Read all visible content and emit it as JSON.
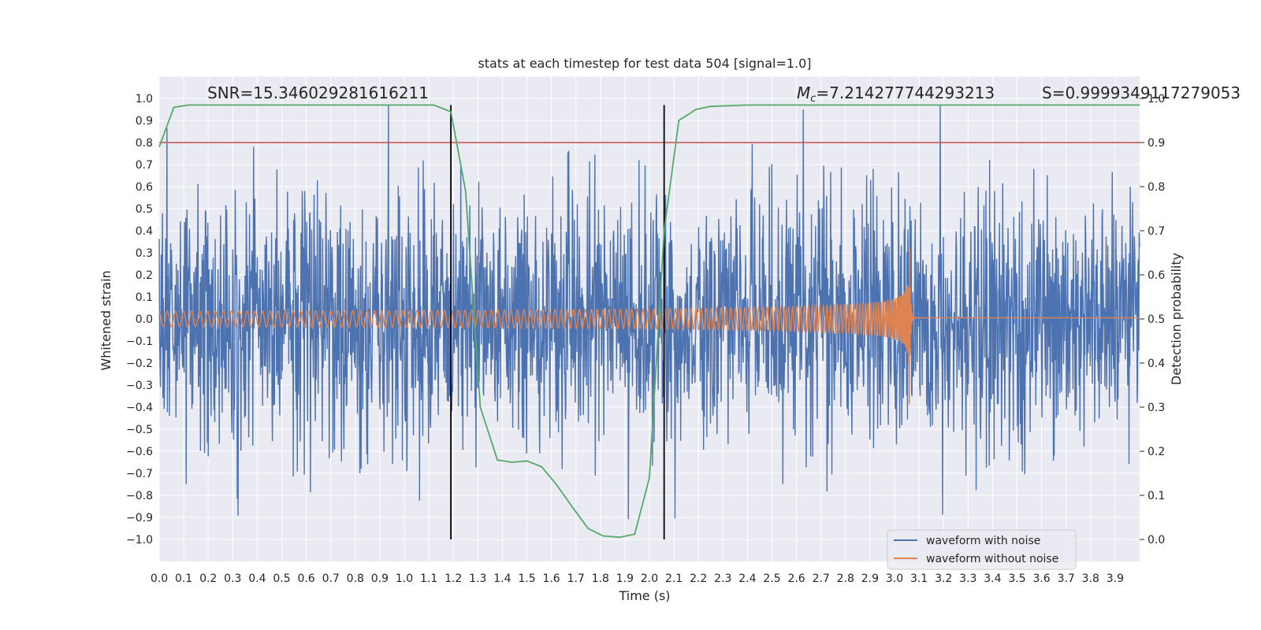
{
  "chart_data": {
    "type": "line",
    "title": "stats at each timestep for test data 504 [signal=1.0]",
    "xlabel": "Time (s)",
    "ylabel": "Whitened strain",
    "y2label": "Detection probability",
    "xlim": [
      0.0,
      4.0
    ],
    "ylim": [
      -1.1,
      1.1
    ],
    "y2lim": [
      -0.05,
      1.05
    ],
    "xticks": [
      "0.0",
      "0.1",
      "0.2",
      "0.3",
      "0.4",
      "0.5",
      "0.6",
      "0.7",
      "0.8",
      "0.9",
      "1.0",
      "1.1",
      "1.2",
      "1.3",
      "1.4",
      "1.5",
      "1.6",
      "1.7",
      "1.8",
      "1.9",
      "2.0",
      "2.1",
      "2.2",
      "2.3",
      "2.4",
      "2.5",
      "2.6",
      "2.7",
      "2.8",
      "2.9",
      "3.0",
      "3.1",
      "3.2",
      "3.3",
      "3.4",
      "3.5",
      "3.6",
      "3.7",
      "3.8",
      "3.9"
    ],
    "yticks": [
      "1.0",
      "0.9",
      "0.8",
      "0.7",
      "0.6",
      "0.5",
      "0.4",
      "0.3",
      "0.2",
      "0.1",
      "0.0",
      "−0.1",
      "−0.2",
      "−0.3",
      "−0.4",
      "−0.5",
      "−0.6",
      "−0.7",
      "−0.8",
      "−0.9",
      "−1.0"
    ],
    "y2ticks": [
      "1.0",
      "0.9",
      "0.8",
      "0.7",
      "0.6",
      "0.5",
      "0.4",
      "0.3",
      "0.2",
      "0.1",
      "0.0"
    ],
    "annotations": {
      "snr": "SNR=15.346029281616211",
      "mc_symbol": "M",
      "mc_sub": "c",
      "mc_value": "=7.214277744293213",
      "s": "S=0.9999349117279053"
    },
    "vertical_lines": [
      1.19,
      2.06
    ],
    "threshold": {
      "value": 0.9,
      "axis": "y2",
      "color": "#c44e52"
    },
    "legend": {
      "position": "lower-right",
      "entries": [
        "waveform with noise",
        "waveform without noise"
      ]
    },
    "series": [
      {
        "name": "waveform with noise",
        "color": "#4c72b0",
        "axis": "y",
        "kind": "noise",
        "sigma": 0.28,
        "min": -1.0,
        "max": 0.97
      },
      {
        "name": "waveform without noise",
        "color": "#dd8452",
        "axis": "y",
        "kind": "chirp",
        "t_merger": 3.06,
        "amp_start": 0.035,
        "amp_peak": 0.46,
        "freq_start": 30
      },
      {
        "name": "detection probability",
        "color": "#55a868",
        "axis": "y2",
        "x": [
          0.0,
          0.06,
          0.12,
          0.2,
          0.4,
          0.6,
          0.8,
          1.0,
          1.12,
          1.19,
          1.25,
          1.31,
          1.38,
          1.44,
          1.5,
          1.56,
          1.62,
          1.69,
          1.75,
          1.81,
          1.88,
          1.94,
          2.0,
          2.06,
          2.12,
          2.19,
          2.25,
          2.4,
          2.6,
          2.8,
          3.0,
          3.2,
          3.4,
          3.6,
          3.8,
          4.0
        ],
        "y": [
          0.89,
          0.98,
          0.985,
          0.985,
          0.985,
          0.985,
          0.985,
          0.985,
          0.985,
          0.97,
          0.79,
          0.3,
          0.18,
          0.175,
          0.178,
          0.165,
          0.125,
          0.07,
          0.025,
          0.008,
          0.005,
          0.012,
          0.14,
          0.7,
          0.95,
          0.975,
          0.982,
          0.985,
          0.985,
          0.985,
          0.985,
          0.985,
          0.985,
          0.985,
          0.985,
          0.985
        ]
      }
    ]
  }
}
